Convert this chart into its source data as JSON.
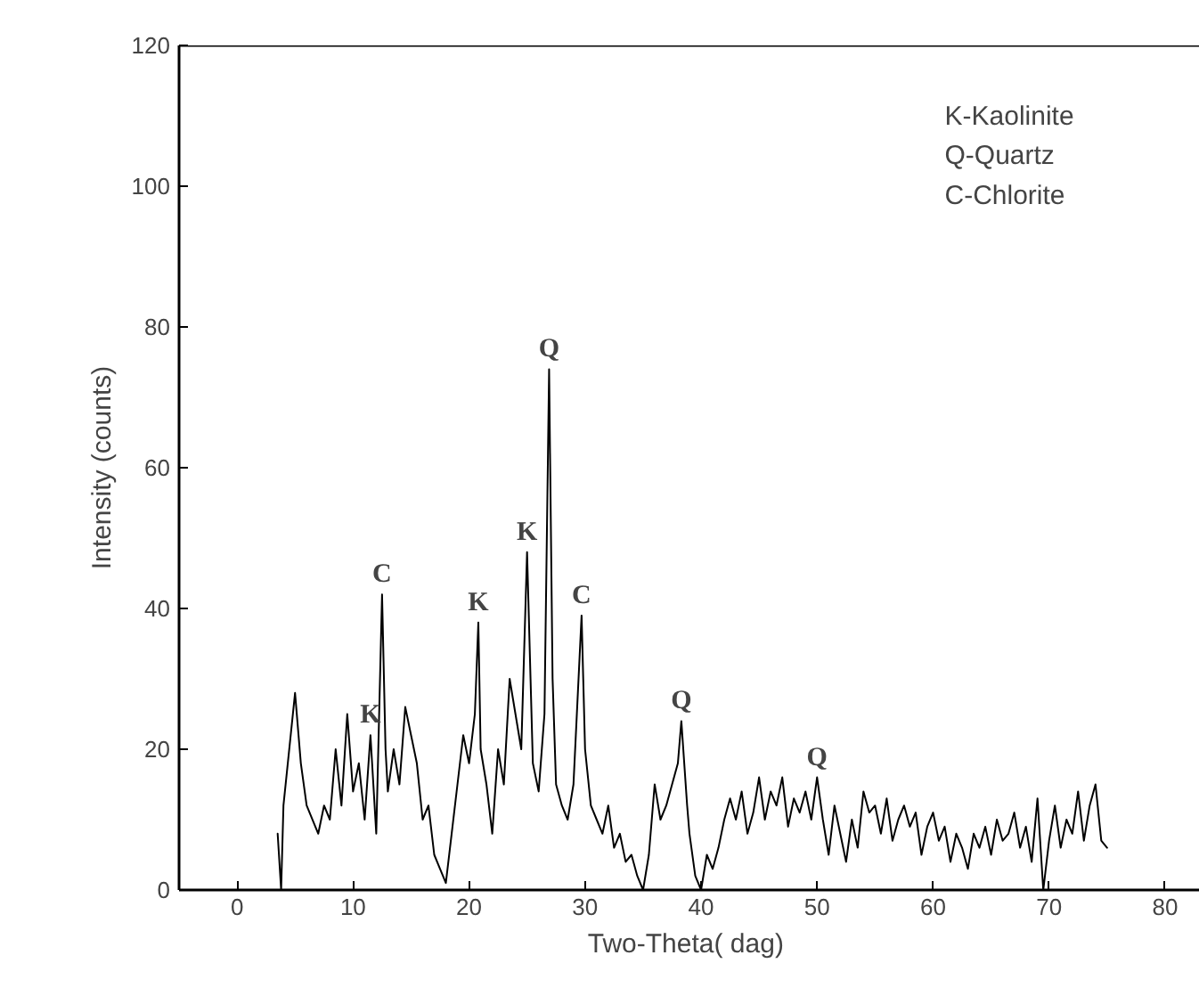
{
  "chart_data": {
    "type": "line",
    "xlabel": "Two-Theta(  dag)",
    "ylabel": "Intensity (counts)",
    "xlim": [
      -5,
      83
    ],
    "ylim": [
      0,
      120
    ],
    "xticks": [
      0,
      10,
      20,
      30,
      40,
      50,
      60,
      70,
      80
    ],
    "yticks": [
      0,
      20,
      40,
      60,
      80,
      100,
      120
    ],
    "grid": false,
    "series": [
      {
        "color": "#000000",
        "x": [
          3.5,
          3.8,
          4,
          5,
          5.5,
          6,
          7,
          7.5,
          8,
          8.5,
          9,
          9.5,
          10,
          10.5,
          11,
          11.5,
          12,
          12.5,
          12.8,
          13,
          13.5,
          14,
          14.5,
          15,
          15.5,
          16,
          16.5,
          17,
          17.5,
          18,
          18.5,
          19,
          19.5,
          20,
          20.5,
          20.8,
          21,
          21.5,
          22,
          22.5,
          23,
          23.5,
          24,
          24.5,
          25,
          25.5,
          26,
          26.5,
          26.9,
          27.2,
          27.5,
          28,
          28.5,
          29,
          29.7,
          30,
          30.5,
          31,
          31.5,
          32,
          32.5,
          33,
          33.5,
          34,
          34.5,
          35,
          35.5,
          36,
          36.5,
          37,
          37.5,
          38,
          38.3,
          38.8,
          39,
          39.5,
          40,
          40.5,
          41,
          41.5,
          42,
          42.5,
          43,
          43.5,
          44,
          44.5,
          45,
          45.5,
          46,
          46.5,
          47,
          47.5,
          48,
          48.5,
          49,
          49.5,
          50,
          50.5,
          51,
          51.5,
          52,
          52.5,
          53,
          53.5,
          54,
          54.5,
          55,
          55.5,
          56,
          56.5,
          57,
          57.5,
          58,
          58.5,
          59,
          59.5,
          60,
          60.5,
          61,
          61.5,
          62,
          62.5,
          63,
          63.5,
          64,
          64.5,
          65,
          65.5,
          66,
          66.5,
          67,
          67.5,
          68,
          68.5,
          69,
          69.5,
          70,
          70.5,
          71,
          71.5,
          72,
          72.5,
          73,
          73.5,
          74,
          74.5,
          75
        ],
        "values": [
          8,
          0,
          12,
          28,
          18,
          12,
          8,
          12,
          10,
          20,
          12,
          25,
          14,
          18,
          10,
          22,
          8,
          42,
          20,
          14,
          20,
          15,
          26,
          22,
          18,
          10,
          12,
          5,
          3,
          1,
          8,
          15,
          22,
          18,
          25,
          38,
          20,
          15,
          8,
          20,
          15,
          30,
          25,
          20,
          48,
          18,
          14,
          25,
          74,
          30,
          15,
          12,
          10,
          15,
          39,
          20,
          12,
          10,
          8,
          12,
          6,
          8,
          4,
          5,
          2,
          0,
          5,
          15,
          10,
          12,
          15,
          18,
          24,
          12,
          8,
          2,
          0,
          5,
          3,
          6,
          10,
          13,
          10,
          14,
          8,
          11,
          16,
          10,
          14,
          12,
          16,
          9,
          13,
          11,
          14,
          10,
          16,
          10,
          5,
          12,
          8,
          4,
          10,
          6,
          14,
          11,
          12,
          8,
          13,
          7,
          10,
          12,
          9,
          11,
          5,
          9,
          11,
          7,
          9,
          4,
          8,
          6,
          3,
          8,
          6,
          9,
          5,
          10,
          7,
          8,
          11,
          6,
          9,
          4,
          13,
          0,
          7,
          12,
          6,
          10,
          8,
          14,
          7,
          12,
          15,
          7,
          6
        ]
      }
    ],
    "annotations": [
      {
        "text": "K",
        "x": 11.5,
        "y": 22
      },
      {
        "text": "C",
        "x": 12.5,
        "y": 42
      },
      {
        "text": "K",
        "x": 20.8,
        "y": 38
      },
      {
        "text": "K",
        "x": 25,
        "y": 48
      },
      {
        "text": "Q",
        "x": 26.9,
        "y": 74
      },
      {
        "text": "C",
        "x": 29.7,
        "y": 39
      },
      {
        "text": "Q",
        "x": 38.3,
        "y": 24
      },
      {
        "text": "Q",
        "x": 50,
        "y": 16
      },
      "K-Kaolinite",
      "Q-Quartz",
      "C-Chlorite"
    ]
  }
}
